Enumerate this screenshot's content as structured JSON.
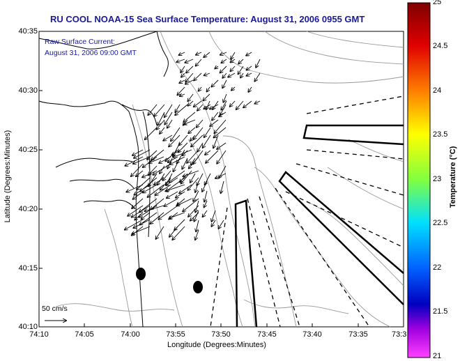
{
  "title": "RU COOL  NOAA-15  Sea Surface Temperature:  August 31, 2006 0955 GMT",
  "current_legend": {
    "line1": "Raw Surface Current:",
    "line2": "August 31, 2006 09:00 GMT"
  },
  "scale_arrow_label": "50 cm/s",
  "axes": {
    "xlabel": "Longitude (Degrees:Minutes)",
    "ylabel": "Latitude (Degrees:Minutes)",
    "xticks": [
      "74:10",
      "74:05",
      "74:00",
      "73:55",
      "73:50",
      "73:45",
      "73:40",
      "73:35",
      "73:3"
    ],
    "yticks": [
      "40:35",
      "40:30",
      "40:25",
      "40:20",
      "40:15",
      "40:10"
    ]
  },
  "colorbar": {
    "label": "Temperature (°C)",
    "ticks": [
      "25",
      "24.5",
      "24",
      "23.5",
      "23",
      "22.5",
      "22",
      "21.5",
      "21"
    ],
    "range": [
      21,
      25
    ]
  },
  "colors": {
    "title": "#1a1a99",
    "land_outline": "#000000",
    "bathymetry": "#999999"
  }
}
